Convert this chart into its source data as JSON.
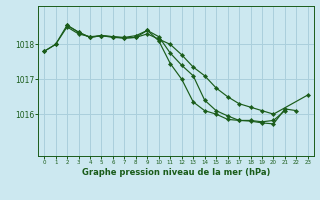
{
  "title": "Graphe pression niveau de la mer (hPa)",
  "background_color": "#cce8f0",
  "grid_color": "#aacfdc",
  "line_color": "#1a5c1a",
  "marker_color": "#1a5c1a",
  "xlim": [
    -0.5,
    23.5
  ],
  "ylim": [
    1014.8,
    1019.1
  ],
  "yticks": [
    1016,
    1017,
    1018
  ],
  "xticks": [
    0,
    1,
    2,
    3,
    4,
    5,
    6,
    7,
    8,
    9,
    10,
    11,
    12,
    13,
    14,
    15,
    16,
    17,
    18,
    19,
    20,
    21,
    22,
    23
  ],
  "series": [
    {
      "x": [
        0,
        1,
        2,
        3,
        4,
        5,
        6,
        7,
        8,
        9,
        10,
        11,
        12,
        13,
        14,
        15,
        16,
        17,
        18,
        19,
        20,
        21
      ],
      "y": [
        1017.8,
        1018.0,
        1018.55,
        1018.35,
        1018.2,
        1018.25,
        1018.22,
        1018.2,
        1018.25,
        1018.4,
        1018.1,
        1017.45,
        1017.0,
        1016.35,
        1016.1,
        1016.0,
        1015.85,
        1015.82,
        1015.82,
        1015.78,
        1015.82,
        1016.1
      ]
    },
    {
      "x": [
        0,
        1,
        2,
        3,
        4,
        5,
        6,
        7,
        8,
        9,
        10,
        11,
        12,
        13,
        14,
        15,
        16,
        17,
        18,
        19,
        20,
        23
      ],
      "y": [
        1017.8,
        1018.0,
        1018.5,
        1018.3,
        1018.22,
        1018.25,
        1018.2,
        1018.18,
        1018.2,
        1018.3,
        1018.15,
        1018.0,
        1017.7,
        1017.35,
        1017.1,
        1016.75,
        1016.5,
        1016.3,
        1016.2,
        1016.1,
        1016.0,
        1016.55
      ]
    },
    {
      "x": [
        2,
        3,
        4,
        5,
        6,
        7,
        8,
        9,
        10,
        11,
        12,
        13,
        14,
        15,
        16,
        17,
        18,
        19,
        20,
        21,
        22
      ],
      "y": [
        1018.55,
        1018.35,
        1018.2,
        1018.25,
        1018.22,
        1018.18,
        1018.2,
        1018.4,
        1018.22,
        1017.75,
        1017.4,
        1017.1,
        1016.4,
        1016.1,
        1015.95,
        1015.82,
        1015.8,
        1015.75,
        1015.72,
        1016.15,
        1016.1
      ]
    }
  ]
}
